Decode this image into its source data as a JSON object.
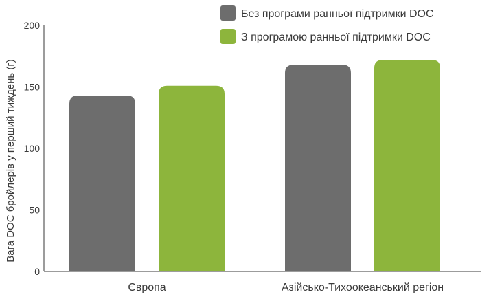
{
  "chart_data": {
    "type": "bar",
    "categories": [
      "Європа",
      "Азійсько-Тихоокеанський регіон"
    ],
    "series": [
      {
        "name": "Без програми ранньої підтримки DOC",
        "color": "#6d6d6d",
        "values": [
          143,
          168
        ]
      },
      {
        "name": "З програмою ранньої підтримки DOC",
        "color": "#8db53c",
        "values": [
          151,
          172
        ]
      }
    ],
    "ylabel": "Вага DOC бройлерів у перший тиждень (г)",
    "ylim": [
      0,
      200
    ],
    "yticks": [
      0,
      50,
      100,
      150,
      200
    ],
    "legend_position": "top-right",
    "grid": false
  }
}
